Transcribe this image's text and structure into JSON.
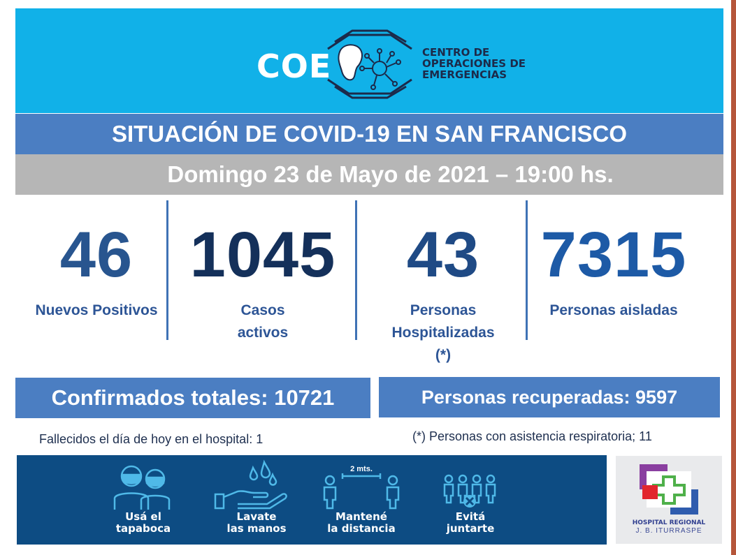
{
  "header": {
    "coe_logo": "COE",
    "org_name_lines": [
      "CENTRO DE",
      "OPERACIONES DE",
      "EMERGENCIAS"
    ],
    "emblem_icon": "virus-network-icon"
  },
  "title": "SITUACIÓN DE COVID-19 EN SAN FRANCISCO",
  "date": "Domingo 23 de Mayo de 2021 – 19:00 hs.",
  "stats": [
    {
      "value": "46",
      "label_lines": [
        "Nuevos Positivos"
      ],
      "color": "#28558f"
    },
    {
      "value": "1045",
      "label_lines": [
        "Casos",
        "activos"
      ],
      "color": "#14305a"
    },
    {
      "value": "43",
      "label_lines": [
        "Personas",
        "Hospitalizadas",
        "(*)"
      ],
      "color": "#1f4a85"
    },
    {
      "value": "7315",
      "label_lines": [
        "Personas aisladas"
      ],
      "color": "#1d5aa6"
    }
  ],
  "totals": {
    "confirmed": "Confirmados totales: 10721",
    "recovered": "Personas recuperadas: 9597"
  },
  "notes": {
    "deceased": "Fallecidos el día de hoy en el hospital: 1",
    "respiratory": "(*) Personas con asistencia respiratoria; 11"
  },
  "prevention": [
    {
      "icon": "face-mask-icon",
      "lines": [
        "Usá el",
        "tapaboca"
      ]
    },
    {
      "icon": "hand-washing-icon",
      "lines": [
        "Lavate",
        "las manos"
      ]
    },
    {
      "icon": "social-distance-icon",
      "lines": [
        "Mantené",
        "la distancia"
      ],
      "distance_label": "2 mts."
    },
    {
      "icon": "no-gathering-icon",
      "lines": [
        "Evitá",
        "juntarte"
      ]
    }
  ],
  "hospital": {
    "name": "HOSPITAL REGIONAL",
    "subtitle": "J. B. ITURRASPE",
    "logo_icon": "hospital-cross-icon"
  },
  "colors": {
    "banner": "#11b1e8",
    "title_bar": "#4b7ec2",
    "date_bar": "#b6b6b6",
    "prevention_bg": "#0d4c83"
  }
}
